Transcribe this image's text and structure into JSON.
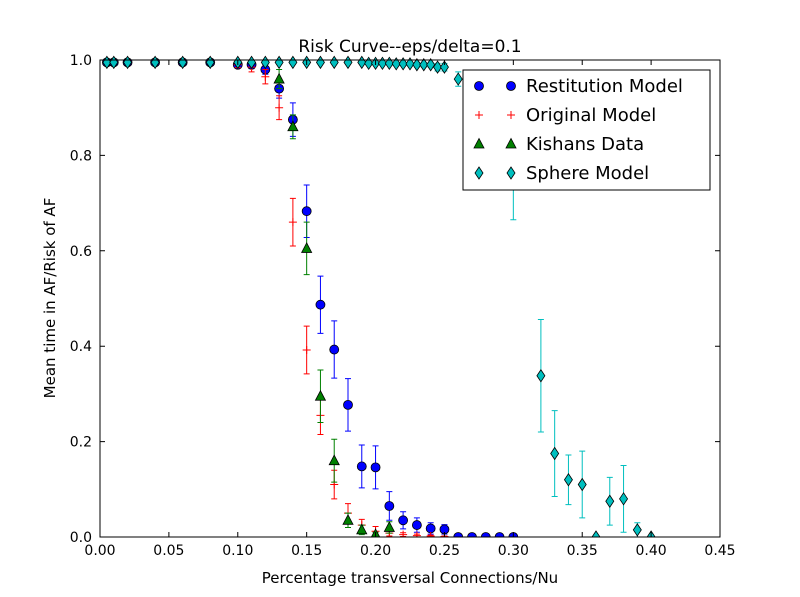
{
  "chart_data": {
    "type": "scatter",
    "title": "Risk Curve--eps/delta=0.1",
    "xlabel": "Percentage transversal Connections/Nu",
    "ylabel": "Mean time in AF/Risk of AF",
    "xlim": [
      0.0,
      0.45
    ],
    "ylim": [
      0.0,
      1.0
    ],
    "xticks": [
      "0.00",
      "0.05",
      "0.10",
      "0.15",
      "0.20",
      "0.25",
      "0.30",
      "0.35",
      "0.40",
      "0.45"
    ],
    "yticks": [
      "0.0",
      "0.2",
      "0.4",
      "0.6",
      "0.8",
      "1.0"
    ],
    "grid": false,
    "legend_position": "top-right",
    "series": [
      {
        "name": "Restitution Model",
        "marker": "circle",
        "color": "#0000ff",
        "x": [
          0.005,
          0.01,
          0.02,
          0.04,
          0.06,
          0.08,
          0.1,
          0.11,
          0.12,
          0.13,
          0.14,
          0.15,
          0.16,
          0.17,
          0.18,
          0.19,
          0.2,
          0.21,
          0.22,
          0.23,
          0.24,
          0.25,
          0.26,
          0.27,
          0.28,
          0.29,
          0.3
        ],
        "y": [
          0.995,
          0.995,
          0.995,
          0.995,
          0.995,
          0.995,
          0.99,
          0.99,
          0.98,
          0.94,
          0.875,
          0.683,
          0.487,
          0.393,
          0.277,
          0.148,
          0.146,
          0.065,
          0.035,
          0.025,
          0.018,
          0.016,
          0.0,
          0.0,
          0.0,
          0.0,
          0.0
        ],
        "err": [
          0.003,
          0.003,
          0.003,
          0.003,
          0.003,
          0.003,
          0.006,
          0.008,
          0.01,
          0.02,
          0.035,
          0.055,
          0.06,
          0.06,
          0.055,
          0.045,
          0.045,
          0.03,
          0.018,
          0.015,
          0.012,
          0.01,
          0.0,
          0.0,
          0.0,
          0.0,
          0.0
        ]
      },
      {
        "name": "Original Model",
        "marker": "plus",
        "color": "#ff0000",
        "x": [
          0.005,
          0.01,
          0.02,
          0.04,
          0.06,
          0.08,
          0.1,
          0.11,
          0.12,
          0.13,
          0.14,
          0.15,
          0.16,
          0.17,
          0.18,
          0.19,
          0.2,
          0.21,
          0.22,
          0.23,
          0.24,
          0.25
        ],
        "y": [
          0.995,
          0.995,
          0.995,
          0.995,
          0.995,
          0.995,
          0.99,
          0.985,
          0.965,
          0.9,
          0.66,
          0.392,
          0.255,
          0.11,
          0.05,
          0.025,
          0.012,
          0.008,
          0.005,
          0.003,
          0.002,
          0.001
        ],
        "err": [
          0.003,
          0.003,
          0.003,
          0.003,
          0.003,
          0.003,
          0.006,
          0.01,
          0.015,
          0.025,
          0.05,
          0.05,
          0.04,
          0.03,
          0.02,
          0.012,
          0.01,
          0.006,
          0.004,
          0.003,
          0.002,
          0.001
        ]
      },
      {
        "name": "Kishans Data",
        "marker": "triangle",
        "color": "#008000",
        "x": [
          0.13,
          0.14,
          0.15,
          0.16,
          0.17,
          0.18,
          0.19,
          0.2,
          0.21
        ],
        "y": [
          0.96,
          0.86,
          0.605,
          0.295,
          0.16,
          0.035,
          0.015,
          0.005,
          0.02
        ],
        "err": [
          0.02,
          0.025,
          0.055,
          0.055,
          0.045,
          0.015,
          0.01,
          0.005,
          0.012
        ]
      },
      {
        "name": "Sphere Model",
        "marker": "diamond",
        "color": "#00bfbf",
        "x": [
          0.005,
          0.01,
          0.02,
          0.04,
          0.06,
          0.08,
          0.1,
          0.11,
          0.12,
          0.13,
          0.14,
          0.15,
          0.16,
          0.17,
          0.18,
          0.19,
          0.195,
          0.2,
          0.205,
          0.21,
          0.215,
          0.22,
          0.225,
          0.23,
          0.235,
          0.24,
          0.245,
          0.25,
          0.26,
          0.27,
          0.28,
          0.29,
          0.3,
          0.32,
          0.33,
          0.34,
          0.35,
          0.36,
          0.37,
          0.38,
          0.39,
          0.4
        ],
        "y": [
          0.995,
          0.995,
          0.995,
          0.995,
          0.995,
          0.995,
          0.995,
          0.995,
          0.995,
          0.995,
          0.995,
          0.995,
          0.995,
          0.995,
          0.995,
          0.995,
          0.993,
          0.993,
          0.993,
          0.993,
          0.992,
          0.992,
          0.992,
          0.99,
          0.99,
          0.99,
          0.985,
          0.985,
          0.96,
          0.94,
          0.88,
          0.8,
          0.74,
          0.338,
          0.175,
          0.12,
          0.11,
          0.0,
          0.075,
          0.08,
          0.015,
          0.0
        ],
        "err": [
          0.002,
          0.002,
          0.002,
          0.002,
          0.002,
          0.002,
          0.002,
          0.002,
          0.002,
          0.002,
          0.002,
          0.002,
          0.002,
          0.002,
          0.002,
          0.002,
          0.003,
          0.003,
          0.003,
          0.003,
          0.004,
          0.004,
          0.004,
          0.005,
          0.005,
          0.005,
          0.008,
          0.008,
          0.015,
          0.025,
          0.05,
          0.06,
          0.075,
          0.118,
          0.09,
          0.052,
          0.07,
          0.0,
          0.05,
          0.07,
          0.015,
          0.0
        ]
      }
    ]
  }
}
